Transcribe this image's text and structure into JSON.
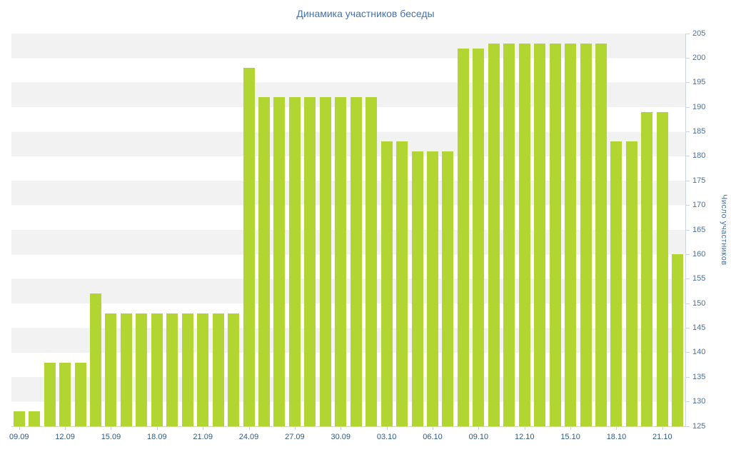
{
  "title": "Динамика участников беседы",
  "colors": {
    "bar": "#b2d532",
    "title_text": "#4572a7",
    "y_label_text": "#4572a7",
    "x_label_text": "#305a85",
    "stripe": "#f2f2f2",
    "axis_line": "#c9d6e2"
  },
  "chart_data": {
    "type": "bar",
    "title": "Динамика участников беседы",
    "xlabel": "",
    "ylabel": "Число участников",
    "ylim": [
      125,
      205
    ],
    "ytick_step": 5,
    "grid": "alternating-horizontal-bands",
    "legend": "none",
    "y_axis_position": "right",
    "xtick_every": 3,
    "xtick_labels": [
      "09.09",
      "12.09",
      "15.09",
      "18.09",
      "21.09",
      "24.09",
      "27.09",
      "30.09",
      "03.10",
      "06.10",
      "09.10",
      "12.10",
      "15.10",
      "18.10",
      "21.10"
    ],
    "categories": [
      "09.09",
      "10.09",
      "11.09",
      "12.09",
      "13.09",
      "14.09",
      "15.09",
      "16.09",
      "17.09",
      "18.09",
      "19.09",
      "20.09",
      "21.09",
      "22.09",
      "23.09",
      "24.09",
      "25.09",
      "26.09",
      "27.09",
      "28.09",
      "29.09",
      "30.09",
      "01.10",
      "02.10",
      "03.10",
      "04.10",
      "05.10",
      "06.10",
      "07.10",
      "08.10",
      "09.10",
      "10.10",
      "11.10",
      "12.10",
      "13.10",
      "14.10",
      "15.10",
      "16.10",
      "17.10",
      "18.10",
      "19.10",
      "20.10",
      "21.10",
      "22.10"
    ],
    "values": [
      128,
      128,
      138,
      138,
      138,
      152,
      148,
      148,
      148,
      148,
      148,
      148,
      148,
      148,
      148,
      198,
      192,
      192,
      192,
      192,
      192,
      192,
      192,
      192,
      183,
      183,
      181,
      181,
      181,
      202,
      202,
      203,
      203,
      203,
      203,
      203,
      203,
      203,
      203,
      183,
      183,
      189,
      189,
      160
    ]
  }
}
